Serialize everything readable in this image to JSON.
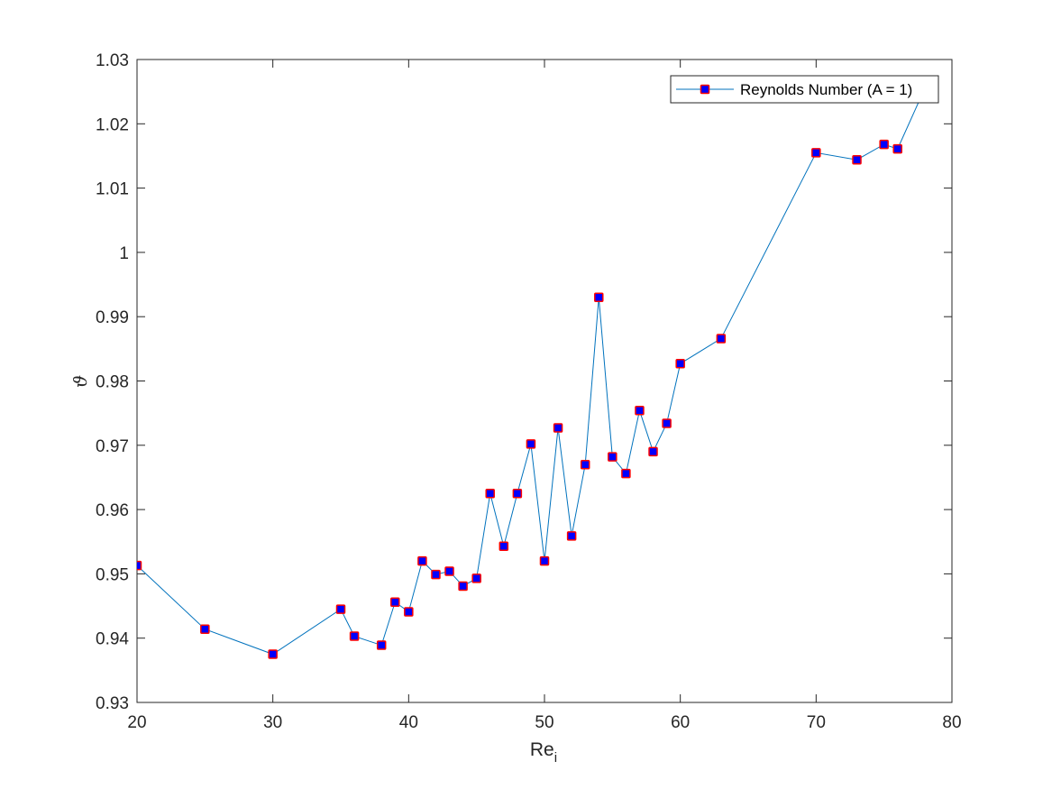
{
  "chart_data": {
    "type": "line",
    "title": "",
    "xlabel": "Re",
    "xlabel_subscript": "i",
    "ylabel": "ϑ",
    "xlim": [
      20,
      80
    ],
    "ylim": [
      0.93,
      1.03
    ],
    "xticks": [
      "20",
      "30",
      "40",
      "50",
      "60",
      "70",
      "80"
    ],
    "yticks": [
      "0.93",
      "0.94",
      "0.95",
      "0.96",
      "0.97",
      "0.98",
      "0.99",
      "1",
      "1.01",
      "1.02",
      "1.03"
    ],
    "grid": false,
    "legend_position": "top-right",
    "series": [
      {
        "name": "Reynolds Number (A = 1)",
        "line_color": "#0072BD",
        "marker": "square",
        "marker_face_color": "#0000FF",
        "marker_edge_color": "#FF0000",
        "x": [
          20,
          25,
          30,
          35,
          36,
          38,
          39,
          40,
          41,
          42,
          43,
          44,
          45,
          46,
          47,
          48,
          49,
          50,
          51,
          52,
          53,
          54,
          55,
          56,
          57,
          58,
          59,
          60,
          63,
          70,
          73,
          75,
          76,
          78
        ],
        "y": [
          0.9513,
          0.9414,
          0.9375,
          0.9445,
          0.9403,
          0.9389,
          0.9456,
          0.9441,
          0.952,
          0.9499,
          0.9504,
          0.9481,
          0.9493,
          0.9625,
          0.9543,
          0.9625,
          0.9702,
          0.952,
          0.9727,
          0.9559,
          0.967,
          0.993,
          0.9682,
          0.9656,
          0.9754,
          0.969,
          0.9734,
          0.9827,
          0.9866,
          1.0155,
          1.0144,
          1.0168,
          1.0161,
          1.0255
        ]
      }
    ]
  }
}
